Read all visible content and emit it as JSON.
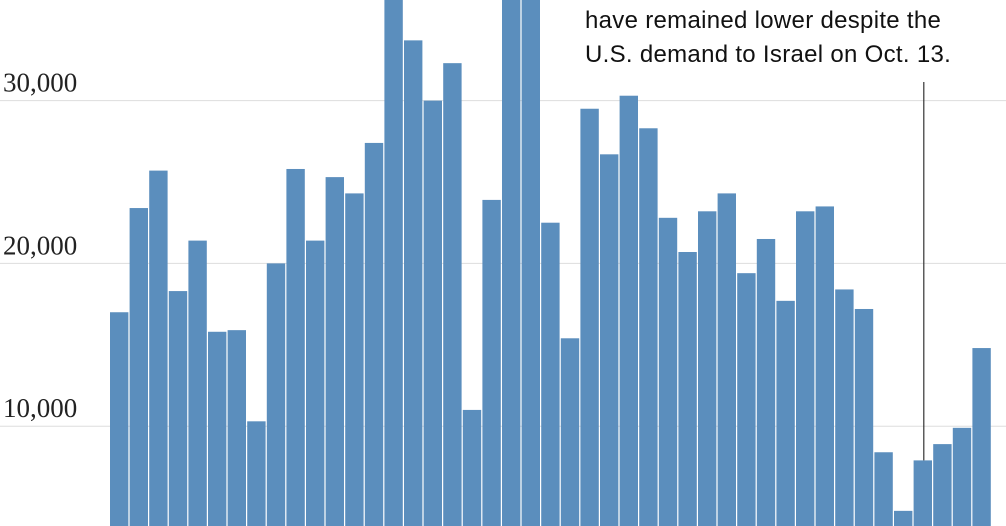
{
  "chart_data": {
    "type": "bar",
    "title": "",
    "xlabel": "",
    "ylabel": "",
    "ylim": [
      0,
      37000
    ],
    "grid": true,
    "y_ticks": [
      {
        "value": 10000,
        "label": "10,000"
      },
      {
        "value": 20000,
        "label": "20,000"
      },
      {
        "value": 30000,
        "label": "30,000"
      }
    ],
    "values": [
      17000,
      23400,
      25700,
      18300,
      21400,
      15800,
      15900,
      10300,
      20000,
      25800,
      21400,
      25300,
      24300,
      27400,
      37500,
      33700,
      30000,
      32300,
      11000,
      23900,
      37500,
      37500,
      22500,
      15400,
      29500,
      26700,
      30300,
      28300,
      22800,
      20700,
      23200,
      24300,
      19400,
      21500,
      17700,
      23200,
      23500,
      18400,
      17200,
      8400,
      4800,
      7900,
      8900,
      9900,
      14800
    ],
    "bar_color": "#5b8ebd",
    "annotation": {
      "lines": [
        "have remained lower despite the",
        "U.S. demand to Israel on Oct. 13."
      ],
      "marker_bar_index": 41
    }
  }
}
